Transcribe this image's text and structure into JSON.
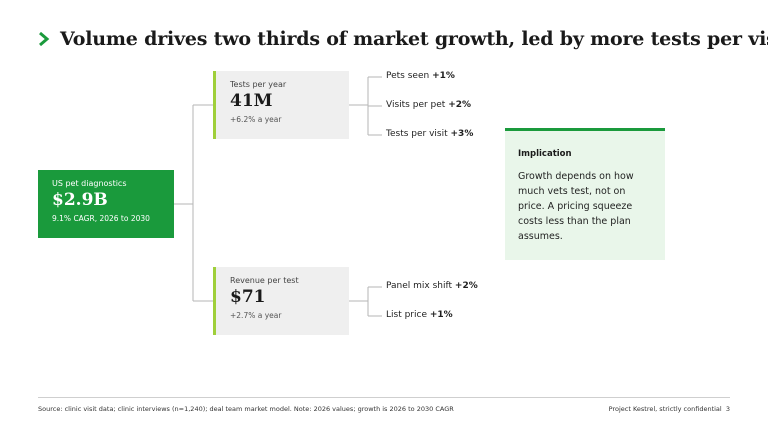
{
  "title": "Volume drives two thirds of market growth, led by more tests per visit",
  "colors": {
    "accent": "#1a9a3c",
    "lime": "#9fcf3a",
    "box": "#efefef",
    "implication_bg": "#e9f6ea"
  },
  "root": {
    "label": "US pet diagnostics",
    "value": "$2.9B",
    "sub": "9.1% CAGR, 2026 to 2030"
  },
  "drivers": [
    {
      "label": "Tests per year",
      "value": "41M",
      "sub": "+6.2% a year",
      "leaves": [
        {
          "label": "Pets seen",
          "value": "+1%"
        },
        {
          "label": "Visits per pet",
          "value": "+2%"
        },
        {
          "label": "Tests per visit",
          "value": "+3%"
        }
      ]
    },
    {
      "label": "Revenue per test",
      "value": "$71",
      "sub": "+2.7% a year",
      "leaves": [
        {
          "label": "Panel mix shift",
          "value": "+2%"
        },
        {
          "label": "List price",
          "value": "+1%"
        }
      ]
    }
  ],
  "implication": {
    "title": "Implication",
    "body": "Growth depends on how much vets test, not on price. A pricing squeeze costs less than the plan assumes."
  },
  "footer": {
    "source": "Source: clinic visit data; clinic interviews (n=1,240); deal team market model. Note: 2026 values; growth is 2026 to 2030 CAGR",
    "confidential": "Project Kestrel, strictly confidential",
    "page": "3"
  }
}
